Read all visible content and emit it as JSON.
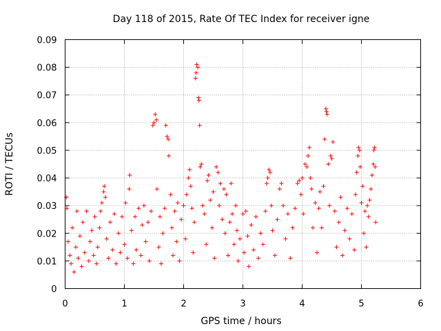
{
  "chart_data": {
    "type": "scatter",
    "title": "Day 118 of 2015, Rate Of TEC Index for receiver igne",
    "xlabel": "GPS time / hours",
    "ylabel": "ROTI / TECUs",
    "xlim": [
      0,
      6
    ],
    "ylim": [
      0,
      0.09
    ],
    "xticks": [
      "0",
      "1",
      "2",
      "3",
      "4",
      "5",
      "6"
    ],
    "yticks": [
      "0",
      "0.01",
      "0.02",
      "0.03",
      "0.04",
      "0.05",
      "0.06",
      "0.07",
      "0.08",
      "0.09"
    ],
    "grid": true,
    "marker": "+",
    "color": "#ff0000",
    "series": [
      {
        "name": "ROTI",
        "points": [
          [
            0.02,
            0.033
          ],
          [
            0.03,
            0.029
          ],
          [
            0.05,
            0.017
          ],
          [
            0.08,
            0.012
          ],
          [
            0.1,
            0.009
          ],
          [
            0.12,
            0.022
          ],
          [
            0.15,
            0.006
          ],
          [
            0.18,
            0.015
          ],
          [
            0.2,
            0.028
          ],
          [
            0.22,
            0.011
          ],
          [
            0.25,
            0.019
          ],
          [
            0.28,
            0.008
          ],
          [
            0.3,
            0.024
          ],
          [
            0.33,
            0.013
          ],
          [
            0.36,
            0.028
          ],
          [
            0.4,
            0.01
          ],
          [
            0.42,
            0.017
          ],
          [
            0.45,
            0.021
          ],
          [
            0.48,
            0.012
          ],
          [
            0.5,
            0.026
          ],
          [
            0.53,
            0.009
          ],
          [
            0.55,
            0.015
          ],
          [
            0.58,
            0.022
          ],
          [
            0.6,
            0.028
          ],
          [
            0.62,
            0.031
          ],
          [
            0.65,
            0.035
          ],
          [
            0.66,
            0.037
          ],
          [
            0.68,
            0.033
          ],
          [
            0.7,
            0.018
          ],
          [
            0.73,
            0.011
          ],
          [
            0.76,
            0.024
          ],
          [
            0.8,
            0.014
          ],
          [
            0.83,
            0.027
          ],
          [
            0.86,
            0.009
          ],
          [
            0.9,
            0.02
          ],
          [
            0.93,
            0.013
          ],
          [
            0.96,
            0.026
          ],
          [
            1.0,
            0.016
          ],
          [
            1.02,
            0.031
          ],
          [
            1.05,
            0.011
          ],
          [
            1.08,
            0.036
          ],
          [
            1.09,
            0.041
          ],
          [
            1.12,
            0.021
          ],
          [
            1.15,
            0.009
          ],
          [
            1.18,
            0.026
          ],
          [
            1.2,
            0.014
          ],
          [
            1.24,
            0.029
          ],
          [
            1.28,
            0.012
          ],
          [
            1.3,
            0.023
          ],
          [
            1.33,
            0.03
          ],
          [
            1.36,
            0.017
          ],
          [
            1.4,
            0.024
          ],
          [
            1.42,
            0.01
          ],
          [
            1.45,
            0.028
          ],
          [
            1.48,
            0.059
          ],
          [
            1.5,
            0.06
          ],
          [
            1.52,
            0.063
          ],
          [
            1.54,
            0.061
          ],
          [
            1.55,
            0.036
          ],
          [
            1.58,
            0.015
          ],
          [
            1.6,
            0.026
          ],
          [
            1.62,
            0.009
          ],
          [
            1.65,
            0.02
          ],
          [
            1.68,
            0.029
          ],
          [
            1.7,
            0.059
          ],
          [
            1.72,
            0.055
          ],
          [
            1.74,
            0.054
          ],
          [
            1.75,
            0.048
          ],
          [
            1.78,
            0.034
          ],
          [
            1.8,
            0.022
          ],
          [
            1.82,
            0.012
          ],
          [
            1.85,
            0.028
          ],
          [
            1.88,
            0.017
          ],
          [
            1.9,
            0.031
          ],
          [
            1.93,
            0.01
          ],
          [
            1.96,
            0.025
          ],
          [
            2.0,
            0.03
          ],
          [
            2.03,
            0.018
          ],
          [
            2.05,
            0.034
          ],
          [
            2.08,
            0.04
          ],
          [
            2.1,
            0.043
          ],
          [
            2.12,
            0.037
          ],
          [
            2.14,
            0.029
          ],
          [
            2.16,
            0.013
          ],
          [
            2.18,
            0.024
          ],
          [
            2.2,
            0.076
          ],
          [
            2.21,
            0.078
          ],
          [
            2.22,
            0.081
          ],
          [
            2.24,
            0.08
          ],
          [
            2.25,
            0.069
          ],
          [
            2.26,
            0.068
          ],
          [
            2.27,
            0.059
          ],
          [
            2.28,
            0.044
          ],
          [
            2.3,
            0.045
          ],
          [
            2.32,
            0.03
          ],
          [
            2.35,
            0.027
          ],
          [
            2.38,
            0.016
          ],
          [
            2.4,
            0.039
          ],
          [
            2.42,
            0.041
          ],
          [
            2.45,
            0.032
          ],
          [
            2.48,
            0.022
          ],
          [
            2.5,
            0.035
          ],
          [
            2.52,
            0.011
          ],
          [
            2.55,
            0.044
          ],
          [
            2.58,
            0.042
          ],
          [
            2.6,
            0.03
          ],
          [
            2.62,
            0.038
          ],
          [
            2.65,
            0.025
          ],
          [
            2.68,
            0.036
          ],
          [
            2.7,
            0.02
          ],
          [
            2.72,
            0.034
          ],
          [
            2.75,
            0.012
          ],
          [
            2.78,
            0.024
          ],
          [
            2.8,
            0.038
          ],
          [
            2.82,
            0.027
          ],
          [
            2.85,
            0.016
          ],
          [
            2.88,
            0.03
          ],
          [
            2.9,
            0.021
          ],
          [
            2.92,
            0.01
          ],
          [
            2.95,
            0.018
          ],
          [
            3.0,
            0.027
          ],
          [
            3.02,
            0.013
          ],
          [
            3.05,
            0.028
          ],
          [
            3.08,
            0.019
          ],
          [
            3.1,
            0.008
          ],
          [
            3.14,
            0.023
          ],
          [
            3.18,
            0.014
          ],
          [
            3.22,
            0.026
          ],
          [
            3.26,
            0.011
          ],
          [
            3.3,
            0.02
          ],
          [
            3.34,
            0.016
          ],
          [
            3.38,
            0.028
          ],
          [
            3.4,
            0.038
          ],
          [
            3.42,
            0.04
          ],
          [
            3.44,
            0.043
          ],
          [
            3.46,
            0.042
          ],
          [
            3.48,
            0.03
          ],
          [
            3.5,
            0.021
          ],
          [
            3.54,
            0.012
          ],
          [
            3.58,
            0.025
          ],
          [
            3.62,
            0.036
          ],
          [
            3.65,
            0.038
          ],
          [
            3.68,
            0.03
          ],
          [
            3.72,
            0.018
          ],
          [
            3.76,
            0.027
          ],
          [
            3.8,
            0.011
          ],
          [
            3.84,
            0.022
          ],
          [
            3.88,
            0.029
          ],
          [
            3.92,
            0.038
          ],
          [
            3.95,
            0.039
          ],
          [
            3.98,
            0.034
          ],
          [
            4.0,
            0.04
          ],
          [
            4.02,
            0.027
          ],
          [
            4.05,
            0.045
          ],
          [
            4.08,
            0.044
          ],
          [
            4.1,
            0.048
          ],
          [
            4.12,
            0.051
          ],
          [
            4.14,
            0.04
          ],
          [
            4.16,
            0.036
          ],
          [
            4.18,
            0.022
          ],
          [
            4.22,
            0.031
          ],
          [
            4.25,
            0.013
          ],
          [
            4.28,
            0.029
          ],
          [
            4.3,
            0.035
          ],
          [
            4.33,
            0.022
          ],
          [
            4.36,
            0.037
          ],
          [
            4.38,
            0.054
          ],
          [
            4.4,
            0.065
          ],
          [
            4.41,
            0.064
          ],
          [
            4.42,
            0.063
          ],
          [
            4.44,
            0.045
          ],
          [
            4.46,
            0.03
          ],
          [
            4.48,
            0.048
          ],
          [
            4.5,
            0.047
          ],
          [
            4.52,
            0.053
          ],
          [
            4.55,
            0.028
          ],
          [
            4.58,
            0.015
          ],
          [
            4.62,
            0.024
          ],
          [
            4.65,
            0.033
          ],
          [
            4.68,
            0.012
          ],
          [
            4.72,
            0.021
          ],
          [
            4.76,
            0.029
          ],
          [
            4.8,
            0.018
          ],
          [
            4.84,
            0.027
          ],
          [
            4.88,
            0.014
          ],
          [
            4.9,
            0.034
          ],
          [
            4.92,
            0.042
          ],
          [
            4.94,
            0.048
          ],
          [
            4.95,
            0.051
          ],
          [
            4.97,
            0.05
          ],
          [
            4.98,
            0.044
          ],
          [
            5.0,
            0.031
          ],
          [
            5.02,
            0.037
          ],
          [
            5.04,
            0.02
          ],
          [
            5.06,
            0.028
          ],
          [
            5.08,
            0.015
          ],
          [
            5.1,
            0.03
          ],
          [
            5.12,
            0.026
          ],
          [
            5.14,
            0.032
          ],
          [
            5.16,
            0.036
          ],
          [
            5.18,
            0.041
          ],
          [
            5.2,
            0.045
          ],
          [
            5.21,
            0.05
          ],
          [
            5.22,
            0.051
          ],
          [
            5.23,
            0.044
          ],
          [
            5.24,
            0.024
          ]
        ]
      }
    ]
  }
}
